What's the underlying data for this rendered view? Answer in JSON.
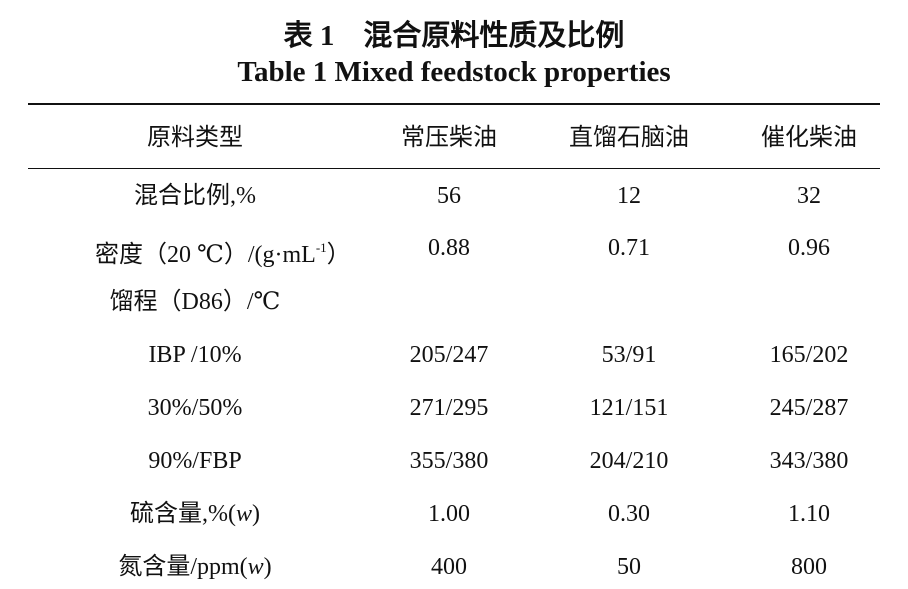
{
  "title_cn": "表 1　混合原料性质及比例",
  "title_en": "Table 1 Mixed feedstock properties",
  "table": {
    "header": [
      "原料类型",
      "常压柴油",
      "直馏石脑油",
      "催化柴油"
    ],
    "rows": [
      {
        "label": [
          {
            "t": "混合比例,%"
          }
        ],
        "cells": [
          "56",
          "12",
          "32"
        ]
      },
      {
        "label": [
          {
            "t": "密度（20 ℃）/(g·mL"
          },
          {
            "t": "-1",
            "sup": true
          },
          {
            "t": "）"
          }
        ],
        "cells": [
          "0.88",
          "0.71",
          "0.96"
        ]
      },
      {
        "label": [
          {
            "t": "馏程（D86）/℃"
          }
        ],
        "cells": []
      },
      {
        "label": [
          {
            "t": "IBP /10%"
          }
        ],
        "cells": [
          "205/247",
          "53/91",
          "165/202"
        ]
      },
      {
        "label": [
          {
            "t": "30%/50%"
          }
        ],
        "cells": [
          "271/295",
          "121/151",
          "245/287"
        ]
      },
      {
        "label": [
          {
            "t": "90%/FBP"
          }
        ],
        "cells": [
          "355/380",
          "204/210",
          "343/380"
        ]
      },
      {
        "label": [
          {
            "t": "硫含量,%("
          },
          {
            "t": "w",
            "italic": true
          },
          {
            "t": ")"
          }
        ],
        "cells": [
          "1.00",
          "0.30",
          "1.10"
        ]
      },
      {
        "label": [
          {
            "t": "氮含量/ppm("
          },
          {
            "t": "w",
            "italic": true
          },
          {
            "t": ")"
          }
        ],
        "cells": [
          "400",
          "50",
          "800"
        ]
      }
    ]
  }
}
